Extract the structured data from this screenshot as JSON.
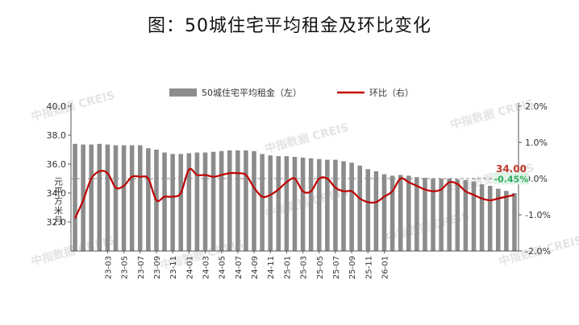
{
  "title": "图：50城住宅平均租金及环比变化",
  "watermark": "中指数据 CREIS",
  "chart_data": {
    "type": "bar",
    "ylabel_left": "元/平方米/月",
    "ylim_left": [
      30,
      40
    ],
    "yticks_left": [
      "40.0",
      "38.0",
      "36.0",
      "34.0",
      "32.0"
    ],
    "ylim_right": [
      -2.0,
      2.0
    ],
    "yticks_right": [
      "2.0%",
      "1.0%",
      "0.0%",
      "-1.0%",
      "-2.0%"
    ],
    "x_tick_labels": [
      "23-03",
      "23-05",
      "23-07",
      "23-09",
      "23-11",
      "24-01",
      "24-03",
      "24-05",
      "24-07",
      "24-09",
      "24-11",
      "25-01",
      "25-03",
      "25-05",
      "25-07",
      "25-09",
      "25-11",
      "26-01"
    ],
    "series": [
      {
        "name": "50城住宅平均租金（左）",
        "type": "bar",
        "color": "#8c8c8c",
        "values": [
          37.4,
          37.35,
          37.35,
          37.4,
          37.35,
          37.3,
          37.3,
          37.3,
          37.3,
          37.1,
          37.0,
          36.8,
          36.7,
          36.7,
          36.75,
          36.8,
          36.8,
          36.85,
          36.9,
          36.95,
          36.95,
          36.95,
          36.9,
          36.7,
          36.6,
          36.55,
          36.55,
          36.5,
          36.45,
          36.4,
          36.35,
          36.3,
          36.3,
          36.2,
          36.1,
          35.9,
          35.65,
          35.5,
          35.3,
          35.2,
          35.25,
          35.2,
          35.1,
          35.05,
          35.0,
          35.0,
          35.0,
          34.95,
          34.9,
          34.8,
          34.6,
          34.5,
          34.3,
          34.15,
          34.0
        ]
      },
      {
        "name": "环比（右）",
        "type": "line",
        "color": "#c00000",
        "values": [
          -1.1,
          -0.6,
          0.0,
          0.2,
          0.15,
          -0.25,
          -0.2,
          0.05,
          0.05,
          0.0,
          -0.6,
          -0.5,
          -0.5,
          -0.4,
          0.25,
          0.1,
          0.1,
          0.05,
          0.1,
          0.15,
          0.15,
          0.1,
          -0.25,
          -0.5,
          -0.45,
          -0.3,
          -0.1,
          0.0,
          -0.35,
          -0.35,
          0.0,
          0.0,
          -0.25,
          -0.35,
          -0.35,
          -0.55,
          -0.65,
          -0.65,
          -0.5,
          -0.35,
          0.0,
          -0.1,
          -0.2,
          -0.3,
          -0.35,
          -0.3,
          -0.1,
          -0.15,
          -0.35,
          -0.45,
          -0.55,
          -0.6,
          -0.55,
          -0.5,
          -0.45
        ]
      }
    ],
    "annotations": [
      {
        "label": "34.00",
        "color": "#c0392b"
      },
      {
        "label": "-0.45%",
        "color": "#2eaa5e"
      }
    ],
    "legend": {
      "placement": "top"
    }
  }
}
